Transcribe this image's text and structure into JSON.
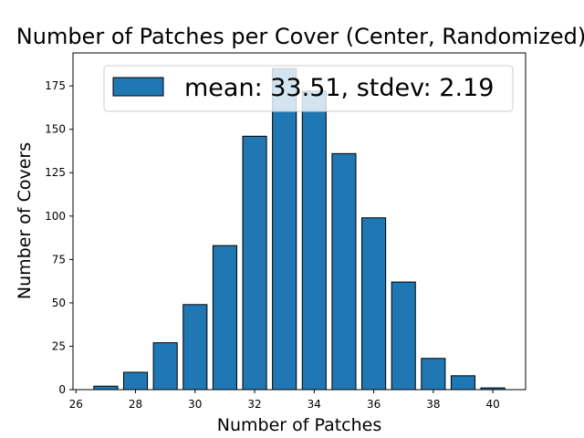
{
  "chart_data": {
    "type": "bar",
    "title": "Number of Patches per Cover (Center, Randomized)",
    "xlabel": "Number of Patches",
    "ylabel": "Number of Covers",
    "x": [
      27,
      28,
      29,
      30,
      31,
      32,
      33,
      34,
      35,
      36,
      37,
      38,
      39,
      40
    ],
    "values": [
      2,
      10,
      27,
      49,
      83,
      146,
      185,
      172,
      136,
      99,
      62,
      18,
      8,
      1
    ],
    "xlim": [
      25.9,
      41.1
    ],
    "ylim": [
      0,
      194
    ],
    "xticks": [
      26,
      28,
      30,
      32,
      34,
      36,
      38,
      40
    ],
    "yticks": [
      0,
      25,
      50,
      75,
      100,
      125,
      150,
      175
    ],
    "legend": {
      "position": "top-right",
      "entries": [
        "mean: 33.51, stdev: 2.19"
      ]
    },
    "grid": false,
    "colors": {
      "bar_fill": "#1f77b4",
      "bar_edge": "#000000",
      "legend_swatch": "#1f77b4"
    }
  }
}
